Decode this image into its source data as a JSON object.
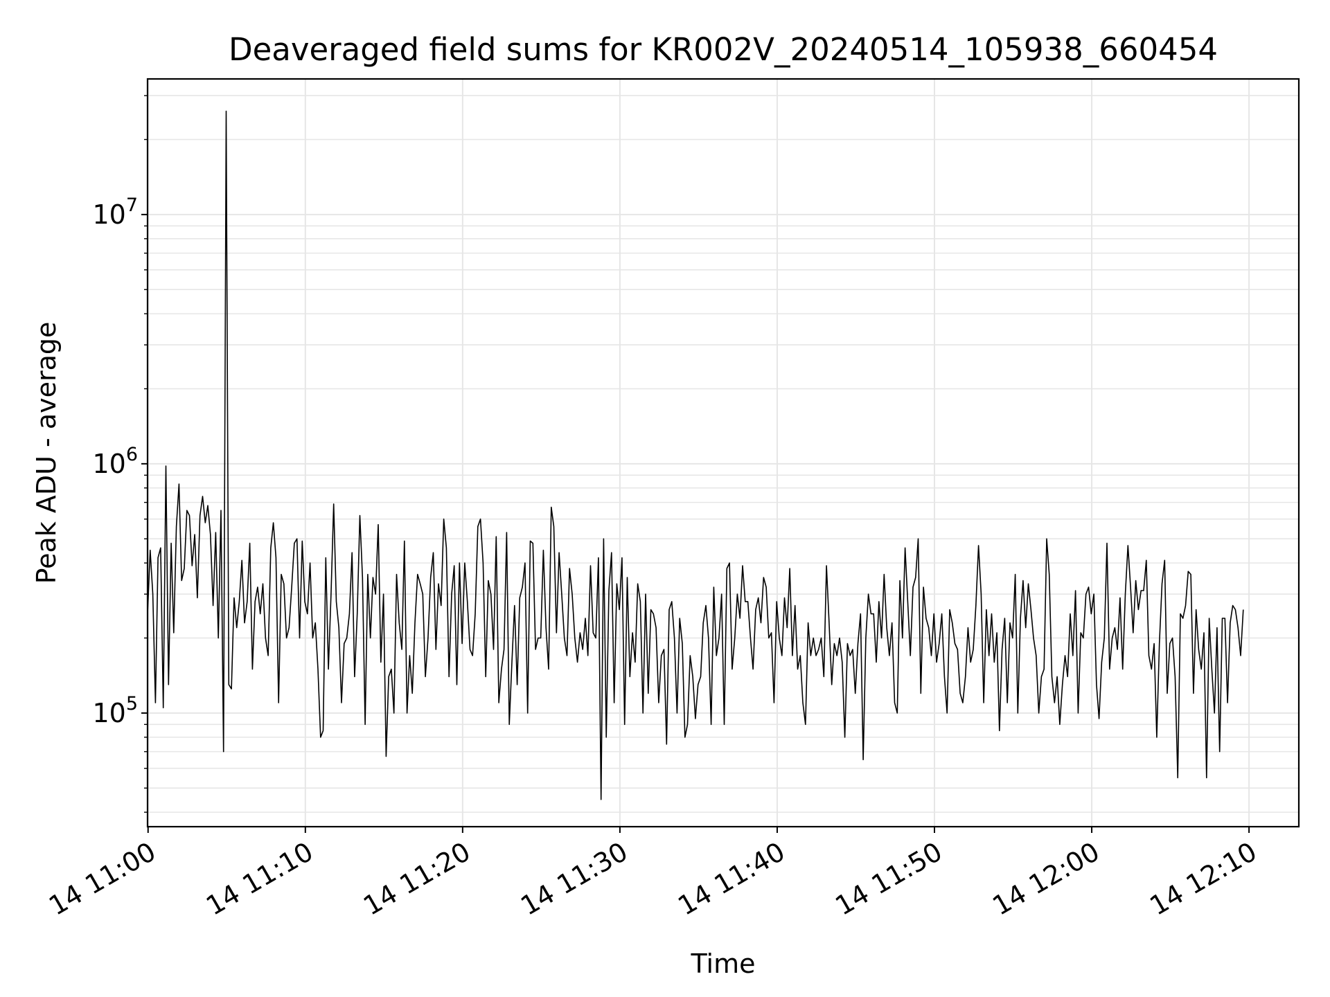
{
  "chart_data": {
    "type": "line",
    "title": "Deaveraged field sums for KR002V_20240514_105938_660454",
    "xlabel": "Time",
    "ylabel": "Peak ADU - average",
    "yscale": "log",
    "grid": true,
    "legend": "none",
    "line_color": "#000000",
    "grid_color": "#e6e6e6",
    "x_range": [
      "14 10:59:58",
      "14 12:13:10"
    ],
    "y_range": [
      35000,
      35000000
    ],
    "x_ticks": [
      "14 11:00",
      "14 11:10",
      "14 11:20",
      "14 11:30",
      "14 11:40",
      "14 11:50",
      "14 12:00",
      "14 12:10"
    ],
    "y_ticks": [
      {
        "value": 100000,
        "base": "10",
        "exp": "5"
      },
      {
        "value": 1000000,
        "base": "10",
        "exp": "6"
      },
      {
        "value": 10000000,
        "base": "10",
        "exp": "7"
      }
    ],
    "series": [
      {
        "x_start": "14 10:59:58",
        "x_step_seconds": 10,
        "values": [
          250000,
          450000,
          300000,
          110000,
          420000,
          460000,
          105000,
          980000,
          130000,
          480000,
          210000,
          560000,
          830000,
          340000,
          380000,
          650000,
          620000,
          390000,
          520000,
          290000,
          620000,
          740000,
          580000,
          680000,
          520000,
          270000,
          530000,
          200000,
          650000,
          70000,
          26000000,
          130000,
          125000,
          290000,
          220000,
          280000,
          410000,
          230000,
          280000,
          480000,
          150000,
          280000,
          320000,
          250000,
          330000,
          200000,
          170000,
          460000,
          580000,
          420000,
          110000,
          360000,
          330000,
          200000,
          220000,
          320000,
          480000,
          500000,
          200000,
          490000,
          280000,
          250000,
          400000,
          200000,
          230000,
          150000,
          80000,
          85000,
          420000,
          150000,
          300000,
          690000,
          280000,
          220000,
          110000,
          190000,
          200000,
          250000,
          440000,
          140000,
          250000,
          620000,
          350000,
          90000,
          360000,
          200000,
          350000,
          300000,
          570000,
          160000,
          300000,
          67000,
          140000,
          150000,
          100000,
          360000,
          230000,
          180000,
          490000,
          100000,
          170000,
          120000,
          230000,
          360000,
          330000,
          300000,
          140000,
          200000,
          350000,
          440000,
          180000,
          330000,
          270000,
          600000,
          460000,
          140000,
          300000,
          390000,
          130000,
          400000,
          190000,
          400000,
          280000,
          180000,
          170000,
          250000,
          560000,
          600000,
          400000,
          140000,
          340000,
          300000,
          180000,
          510000,
          110000,
          150000,
          180000,
          530000,
          90000,
          160000,
          270000,
          130000,
          290000,
          320000,
          400000,
          100000,
          490000,
          480000,
          180000,
          200000,
          200000,
          450000,
          220000,
          150000,
          670000,
          560000,
          210000,
          440000,
          300000,
          200000,
          170000,
          380000,
          300000,
          200000,
          160000,
          210000,
          180000,
          240000,
          170000,
          390000,
          210000,
          200000,
          420000,
          45000,
          500000,
          80000,
          310000,
          440000,
          110000,
          330000,
          260000,
          420000,
          90000,
          350000,
          140000,
          210000,
          160000,
          330000,
          280000,
          100000,
          300000,
          120000,
          260000,
          250000,
          220000,
          110000,
          170000,
          180000,
          75000,
          260000,
          280000,
          200000,
          100000,
          240000,
          190000,
          80000,
          90000,
          170000,
          140000,
          95000,
          130000,
          140000,
          230000,
          270000,
          200000,
          90000,
          320000,
          170000,
          200000,
          300000,
          90000,
          380000,
          400000,
          150000,
          200000,
          300000,
          240000,
          390000,
          280000,
          280000,
          200000,
          150000,
          260000,
          290000,
          230000,
          350000,
          320000,
          200000,
          210000,
          110000,
          280000,
          200000,
          170000,
          290000,
          220000,
          380000,
          170000,
          270000,
          150000,
          170000,
          110000,
          90000,
          230000,
          170000,
          200000,
          170000,
          180000,
          200000,
          140000,
          390000,
          230000,
          130000,
          190000,
          170000,
          200000,
          160000,
          80000,
          190000,
          170000,
          180000,
          120000,
          190000,
          250000,
          65000,
          200000,
          300000,
          250000,
          250000,
          160000,
          280000,
          200000,
          360000,
          220000,
          170000,
          230000,
          110000,
          100000,
          340000,
          200000,
          460000,
          280000,
          170000,
          320000,
          350000,
          500000,
          120000,
          320000,
          240000,
          220000,
          170000,
          250000,
          160000,
          190000,
          250000,
          140000,
          100000,
          260000,
          230000,
          190000,
          180000,
          120000,
          110000,
          140000,
          220000,
          160000,
          180000,
          270000,
          470000,
          300000,
          110000,
          260000,
          170000,
          250000,
          160000,
          210000,
          85000,
          180000,
          240000,
          110000,
          230000,
          200000,
          360000,
          100000,
          240000,
          340000,
          220000,
          330000,
          260000,
          200000,
          170000,
          100000,
          140000,
          150000,
          500000,
          360000,
          140000,
          110000,
          140000,
          90000,
          130000,
          170000,
          140000,
          250000,
          170000,
          310000,
          100000,
          210000,
          200000,
          300000,
          320000,
          250000,
          300000,
          130000,
          95000,
          160000,
          200000,
          480000,
          150000,
          200000,
          220000,
          180000,
          290000,
          150000,
          300000,
          470000,
          320000,
          210000,
          340000,
          260000,
          310000,
          310000,
          410000,
          170000,
          150000,
          190000,
          80000,
          190000,
          330000,
          410000,
          120000,
          190000,
          200000,
          140000,
          55000,
          250000,
          240000,
          270000,
          370000,
          360000,
          120000,
          260000,
          180000,
          150000,
          210000,
          55000,
          240000,
          150000,
          100000,
          220000,
          70000,
          240000,
          240000,
          110000,
          230000,
          270000,
          260000,
          220000,
          170000,
          260000
        ]
      }
    ]
  }
}
